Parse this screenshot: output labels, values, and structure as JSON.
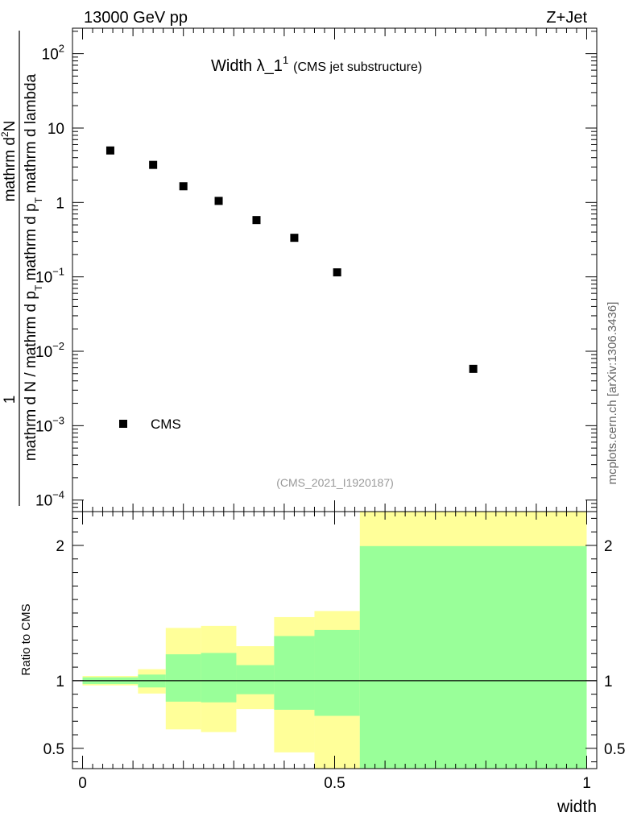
{
  "header": {
    "left": "13000 GeV pp",
    "right": "Z+Jet"
  },
  "plot_title": {
    "main": "Width λ_1",
    "superscript": "1",
    "suffix": "(CMS jet substructure)"
  },
  "side_label": "mcplots.cern.ch [arXiv:1306.3436]",
  "analysis_id": "(CMS_2021_I1920187)",
  "ylabel_main": {
    "numerator_one": "1",
    "numerator_text": "mathrm d",
    "numerator_super": "2",
    "numerator_end": "N",
    "denominator": "mathrm d N / mathrm d p",
    "denominator_sub": "T",
    "denominator_end": " mathrm d p",
    "denominator_sub2": "T",
    "denominator_tail": " mathrm d lambda"
  },
  "ylabel_ratio": "Ratio to CMS",
  "xlabel": "width",
  "legend": {
    "entry": "CMS",
    "position": "bottom-left"
  },
  "colors": {
    "yellow_band": "#ffff99",
    "green_band": "#99ff99",
    "marker": "#000000"
  },
  "chart_data": [
    {
      "type": "scatter",
      "scale": "log",
      "ylim": [
        7e-05,
        220
      ],
      "xlim": [
        -0.02,
        1.02
      ],
      "yticks_major": [
        {
          "value": 0.0001,
          "mantissa": "10",
          "exp": "−4"
        },
        {
          "value": 0.001,
          "mantissa": "10",
          "exp": "−3"
        },
        {
          "value": 0.01,
          "mantissa": "10",
          "exp": "−2"
        },
        {
          "value": 0.1,
          "mantissa": "10",
          "exp": "−1"
        },
        {
          "value": 1,
          "mantissa": "1",
          "exp": ""
        },
        {
          "value": 10,
          "mantissa": "10",
          "exp": ""
        },
        {
          "value": 100,
          "mantissa": "10",
          "exp": "2"
        }
      ],
      "series": [
        {
          "name": "CMS",
          "x": [
            0.055,
            0.14,
            0.2,
            0.27,
            0.345,
            0.42,
            0.505,
            0.775
          ],
          "y": [
            5.0,
            3.2,
            1.65,
            1.05,
            0.58,
            0.335,
            0.115,
            0.0058
          ]
        }
      ]
    },
    {
      "type": "area",
      "ylim": [
        0.35,
        2.25
      ],
      "xlim": [
        -0.02,
        1.02
      ],
      "yticks_major": [
        {
          "value": 0.5,
          "label": "0.5"
        },
        {
          "value": 1,
          "label": "1"
        },
        {
          "value": 2,
          "label": "2"
        }
      ],
      "xticks_major": [
        {
          "value": 0,
          "label": "0"
        },
        {
          "value": 0.5,
          "label": "0.5"
        },
        {
          "value": 1,
          "label": "1"
        }
      ],
      "reference_line": 1,
      "bins": [
        {
          "x0": 0.0,
          "x1": 0.11,
          "yellow": [
            0.965,
            1.035
          ],
          "green": [
            0.975,
            1.025
          ]
        },
        {
          "x0": 0.11,
          "x1": 0.165,
          "yellow": [
            0.905,
            1.085
          ],
          "green": [
            0.95,
            1.045
          ]
        },
        {
          "x0": 0.165,
          "x1": 0.235,
          "yellow": [
            0.64,
            1.39
          ],
          "green": [
            0.845,
            1.195
          ]
        },
        {
          "x0": 0.235,
          "x1": 0.305,
          "yellow": [
            0.62,
            1.405
          ],
          "green": [
            0.84,
            1.205
          ]
        },
        {
          "x0": 0.305,
          "x1": 0.38,
          "yellow": [
            0.79,
            1.255
          ],
          "green": [
            0.9,
            1.115
          ]
        },
        {
          "x0": 0.38,
          "x1": 0.46,
          "yellow": [
            0.47,
            1.47
          ],
          "green": [
            0.785,
            1.33
          ]
        },
        {
          "x0": 0.46,
          "x1": 0.55,
          "yellow": [
            0.35,
            1.515
          ],
          "green": [
            0.74,
            1.375
          ]
        },
        {
          "x0": 0.55,
          "x1": 1.0,
          "yellow": [
            0.35,
            2.25
          ],
          "green": [
            0.35,
            1.995
          ]
        }
      ]
    }
  ]
}
